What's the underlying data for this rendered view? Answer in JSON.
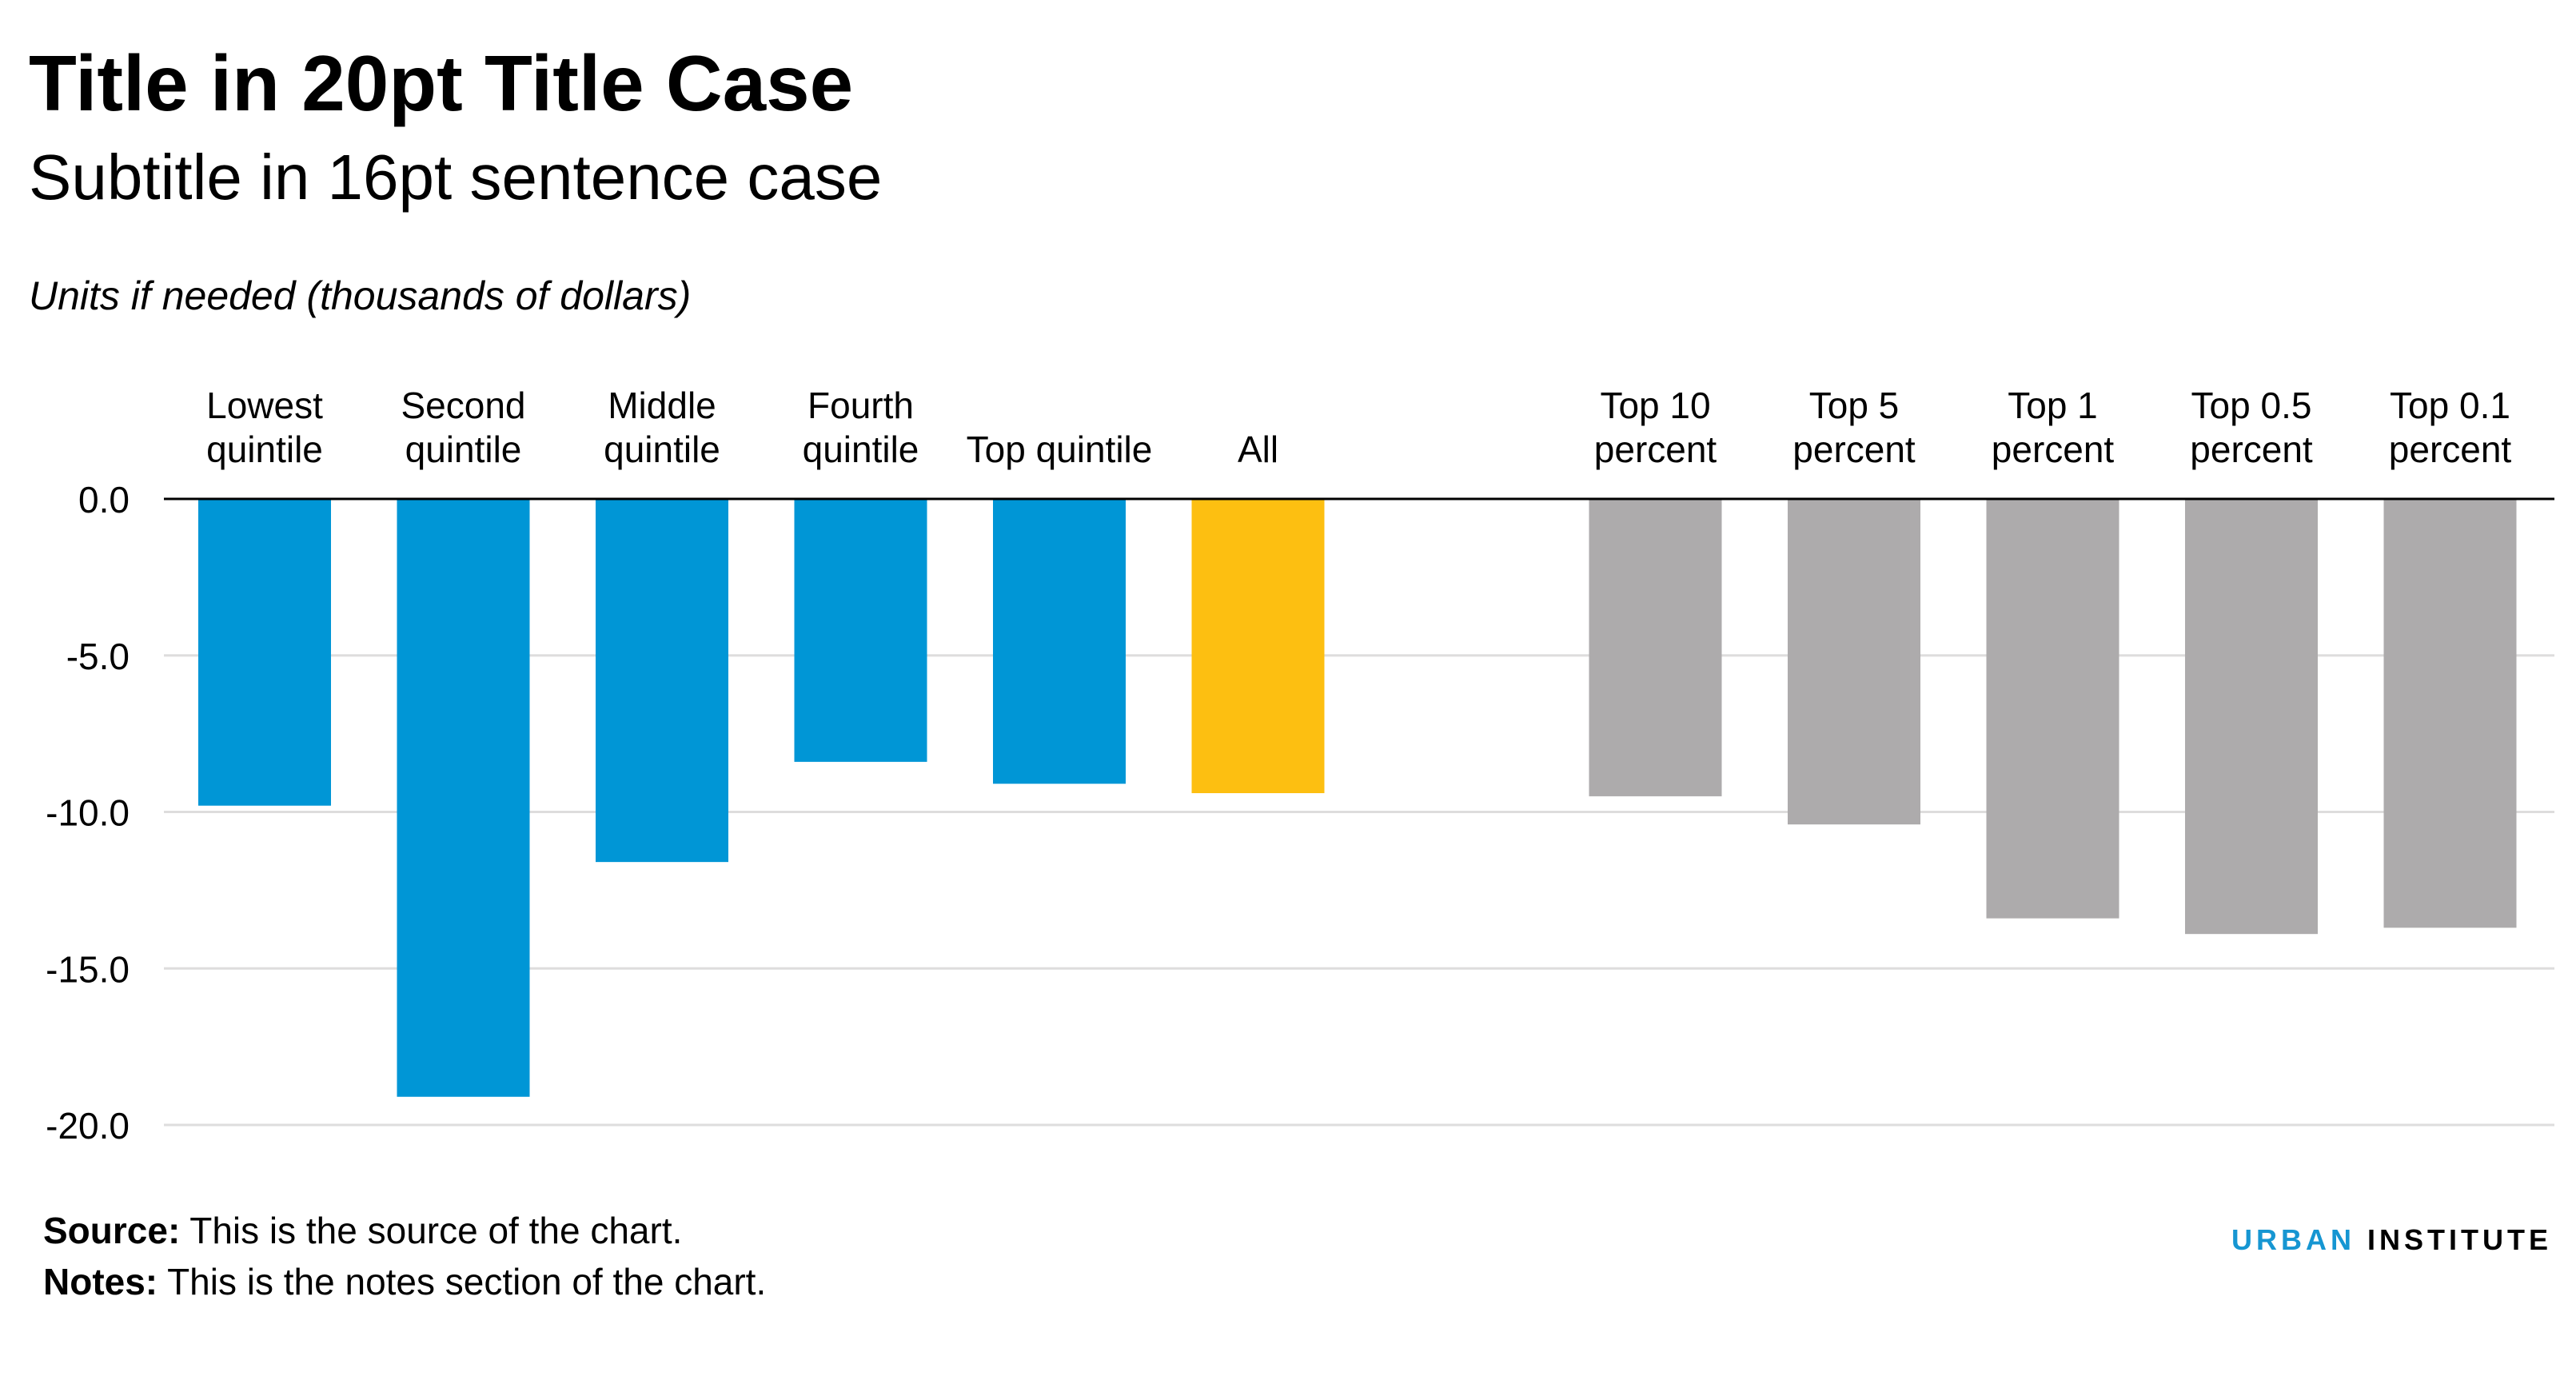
{
  "header": {
    "title": "Title in 20pt Title Case",
    "subtitle": "Subtitle in 16pt sentence case",
    "units": "Units if needed (thousands of dollars)"
  },
  "footer": {
    "source_label": "Source:",
    "source_text": "This is the source of the chart.",
    "notes_label": "Notes:",
    "notes_text": "This is the notes section of the chart."
  },
  "logo": {
    "urban": "URBAN",
    "institute": "INSTITUTE"
  },
  "chart_data": {
    "type": "bar",
    "categories": [
      [
        "Lowest",
        "quintile"
      ],
      [
        "Second",
        "quintile"
      ],
      [
        "Middle",
        "quintile"
      ],
      [
        "Fourth",
        "quintile"
      ],
      [
        "Top quintile"
      ],
      [
        "All"
      ],
      [],
      [
        "Top 10",
        "percent"
      ],
      [
        "Top 5",
        "percent"
      ],
      [
        "Top 1",
        "percent"
      ],
      [
        "Top 0.5",
        "percent"
      ],
      [
        "Top 0.1",
        "percent"
      ]
    ],
    "values": [
      -9.8,
      -19.1,
      -11.6,
      -8.4,
      -9.1,
      -9.4,
      null,
      -9.5,
      -10.4,
      -13.4,
      -13.9,
      -13.7
    ],
    "colors": [
      "#0096d6",
      "#0096d6",
      "#0096d6",
      "#0096d6",
      "#0096d6",
      "#fdbf11",
      null,
      "#adabac",
      "#adabac",
      "#adabac",
      "#adabac",
      "#adabac"
    ],
    "ylim": [
      -20,
      0
    ],
    "yticks": [
      0,
      -5,
      -10,
      -15,
      -20
    ],
    "ytick_labels": [
      "0.0",
      "-5.0",
      "-10.0",
      "-15.0",
      "-20.0"
    ],
    "xlabel": "",
    "ylabel": "",
    "grid": true,
    "legend": "none"
  }
}
